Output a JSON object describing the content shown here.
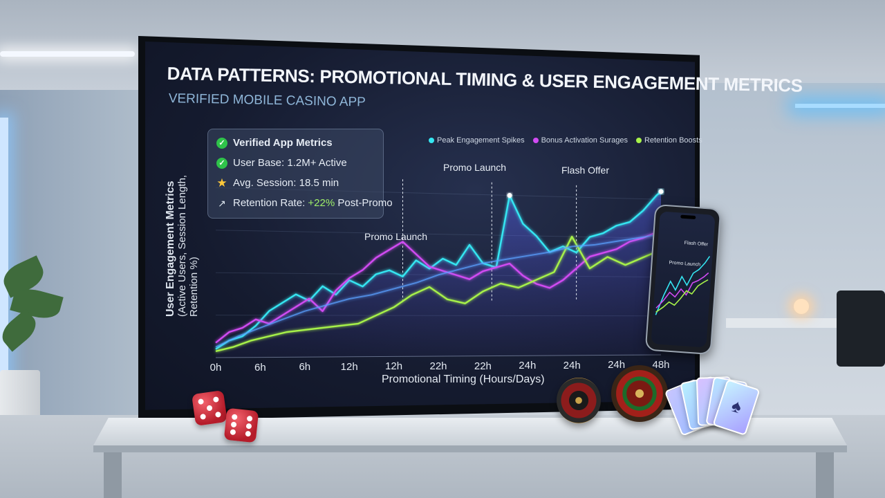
{
  "header": {
    "title": "DATA PATTERNS: PROMOTIONAL TIMING & USER ENGAGEMENT METRICS",
    "subtitle": "VERIFIED MOBILE CASINO APP"
  },
  "kpis": {
    "heading": "Verified App Metrics",
    "user_base": "User Base: 1.2M+ Active",
    "avg_session": "Avg. Session: 18.5 min",
    "retention_prefix": "Retention Rate: ",
    "retention_value": "+22%",
    "retention_suffix": " Post-Promo"
  },
  "annotations": {
    "promo_launch_1": "Promo Launch",
    "promo_launch_2": "Promo Launch",
    "flash_offer": "Flash Offer"
  },
  "phone": {
    "promo_label": "Promo Launch",
    "flash_label": "Flash Offer"
  },
  "colors": {
    "cyan": "#35e6f2",
    "magenta": "#d14bf2",
    "green": "#a7f24a",
    "blue": "#5aa0ff"
  },
  "chart_data": {
    "type": "line",
    "title": "DATA PATTERNS: PROMOTIONAL TIMING & USER ENGAGEMENT METRICS",
    "xlabel": "Promotional Timing (Hours/Days)",
    "ylabel": [
      "User Engagement Metrics",
      "(Active Users, Session Length, Retention %)"
    ],
    "x_tick_labels": [
      "0h",
      "6h",
      "6h",
      "12h",
      "12h",
      "22h",
      "22h",
      "24h",
      "24h",
      "24h",
      "48h"
    ],
    "ylim": [
      0,
      100
    ],
    "legend_position": "top-right",
    "legend": [
      {
        "label": "Peak Engagement Spikes",
        "color": "#35e6f2"
      },
      {
        "label": "Bonus Activation Surages",
        "color": "#d14bf2"
      },
      {
        "label": "Retention Boosts",
        "color": "#a7f24a"
      }
    ],
    "series": [
      {
        "color": "#35e6f2",
        "x": [
          0,
          0.3,
          0.6,
          0.9,
          1.2,
          1.5,
          1.8,
          2.1,
          2.4,
          2.7,
          3.0,
          3.3,
          3.6,
          3.9,
          4.2,
          4.5,
          4.8,
          5.1,
          5.4,
          5.7,
          6.0,
          6.3,
          6.6,
          6.9,
          7.2,
          7.5,
          7.8,
          8.1,
          8.4,
          8.7,
          9.0,
          9.3,
          9.6,
          9.9,
          10.0
        ],
        "values": [
          4,
          8,
          10,
          15,
          22,
          26,
          30,
          27,
          34,
          30,
          37,
          34,
          40,
          42,
          39,
          47,
          43,
          48,
          45,
          55,
          46,
          44,
          80,
          66,
          60,
          52,
          55,
          52,
          60,
          62,
          66,
          68,
          74,
          82,
          84
        ]
      },
      {
        "color": "#d14bf2",
        "x": [
          0,
          0.3,
          0.6,
          0.9,
          1.2,
          1.5,
          1.8,
          2.1,
          2.4,
          2.7,
          3.0,
          3.3,
          3.6,
          3.9,
          4.2,
          4.5,
          4.8,
          5.1,
          5.4,
          5.7,
          6.0,
          6.3,
          6.6,
          6.9,
          7.2,
          7.5,
          7.8,
          8.1,
          8.4,
          8.7,
          9.0,
          9.3,
          9.6,
          10.0
        ],
        "values": [
          7,
          12,
          14,
          18,
          16,
          20,
          24,
          28,
          22,
          32,
          38,
          42,
          48,
          52,
          56,
          50,
          44,
          42,
          40,
          38,
          42,
          44,
          46,
          40,
          36,
          34,
          38,
          44,
          50,
          52,
          54,
          58,
          60,
          64
        ]
      },
      {
        "color": "#a7f24a",
        "x": [
          0,
          0.4,
          0.8,
          1.2,
          1.6,
          2.0,
          2.4,
          2.8,
          3.2,
          3.6,
          4.0,
          4.4,
          4.8,
          5.2,
          5.6,
          6.0,
          6.4,
          6.8,
          7.2,
          7.6,
          8.0,
          8.4,
          8.8,
          9.2,
          9.6,
          10.0
        ],
        "values": [
          3,
          5,
          8,
          10,
          12,
          13,
          14,
          15,
          16,
          20,
          24,
          30,
          34,
          28,
          26,
          32,
          36,
          34,
          38,
          42,
          60,
          44,
          50,
          46,
          50,
          54
        ]
      },
      {
        "color": "#5aa0ff",
        "x": [
          0,
          0.5,
          1.0,
          1.5,
          2.0,
          2.5,
          3.0,
          3.5,
          4.0,
          4.5,
          5.0,
          5.5,
          6.0,
          6.5,
          7.0,
          7.5,
          8.0,
          8.5,
          9.0,
          9.5,
          10.0
        ],
        "values": [
          5,
          10,
          14,
          18,
          22,
          25,
          28,
          30,
          33,
          36,
          40,
          43,
          46,
          48,
          50,
          52,
          55,
          56,
          58,
          60,
          62
        ]
      }
    ],
    "event_markers": [
      {
        "label": "Promo Launch",
        "x": 4.2
      },
      {
        "label": "Promo Launch",
        "x": 6.2
      },
      {
        "label": "Flash Offer",
        "x": 8.1
      }
    ]
  }
}
